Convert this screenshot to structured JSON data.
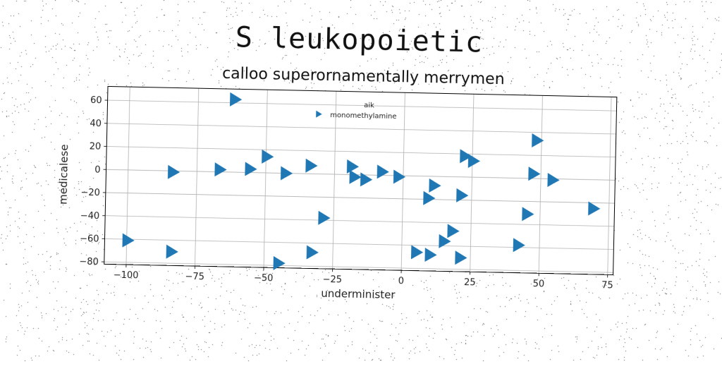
{
  "chart_data": {
    "type": "scatter",
    "title": "S leukopoietic",
    "subtitle": "calloo superornamentally merrymen",
    "xlabel": "underminister",
    "ylabel": "medicalese",
    "xlim": [
      -108,
      77
    ],
    "ylim": [
      -82,
      72
    ],
    "xticks": [
      -100,
      -75,
      -50,
      -25,
      0,
      25,
      50,
      75
    ],
    "xtick_labels": [
      "−100",
      "−75",
      "−50",
      "−25",
      "0",
      "25",
      "50",
      "75"
    ],
    "yticks": [
      -80,
      -60,
      -40,
      -20,
      0,
      20,
      40,
      60
    ],
    "ytick_labels": [
      "−80",
      "−60",
      "−40",
      "−20",
      "0",
      "20",
      "40",
      "60"
    ],
    "grid": true,
    "legend": {
      "title": "aik",
      "position": "upper center"
    },
    "marker": "triangle-right",
    "series": [
      {
        "name": "monomethylamine",
        "color": "#1f77b4",
        "points": [
          {
            "x": -62,
            "y": 63
          },
          {
            "x": -100,
            "y": -61
          },
          {
            "x": -84,
            "y": -1
          },
          {
            "x": -84,
            "y": -70
          },
          {
            "x": -67,
            "y": 2
          },
          {
            "x": -56,
            "y": 3
          },
          {
            "x": -50,
            "y": 14
          },
          {
            "x": -43,
            "y": 0
          },
          {
            "x": -45,
            "y": -78
          },
          {
            "x": -34,
            "y": 7
          },
          {
            "x": -33,
            "y": -68
          },
          {
            "x": -29,
            "y": -38
          },
          {
            "x": -19,
            "y": 7
          },
          {
            "x": -18,
            "y": -2
          },
          {
            "x": -14,
            "y": -4
          },
          {
            "x": -8,
            "y": 3
          },
          {
            "x": -2,
            "y": -1
          },
          {
            "x": 5,
            "y": -66
          },
          {
            "x": 9,
            "y": -19
          },
          {
            "x": 10,
            "y": -68
          },
          {
            "x": 11,
            "y": -8
          },
          {
            "x": 15,
            "y": -56
          },
          {
            "x": 18,
            "y": -47
          },
          {
            "x": 21,
            "y": -16
          },
          {
            "x": 21,
            "y": -70
          },
          {
            "x": 22,
            "y": 18
          },
          {
            "x": 25,
            "y": 14
          },
          {
            "x": 42,
            "y": -58
          },
          {
            "x": 45,
            "y": -31
          },
          {
            "x": 47,
            "y": 4
          },
          {
            "x": 48,
            "y": 33
          },
          {
            "x": 54,
            "y": -1
          },
          {
            "x": 69,
            "y": -25
          }
        ]
      }
    ]
  }
}
